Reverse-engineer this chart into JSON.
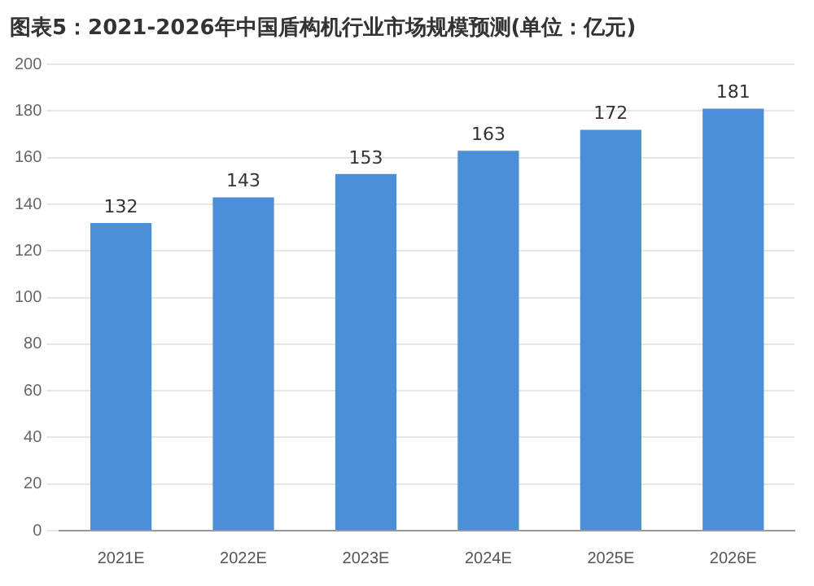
{
  "chart_data": {
    "type": "bar",
    "title": "图表5：2021-2026年中国盾构机行业市场规模预测(单位：亿元)",
    "categories": [
      "2021E",
      "2022E",
      "2023E",
      "2024E",
      "2025E",
      "2026E"
    ],
    "values": [
      132,
      143,
      153,
      163,
      172,
      181
    ],
    "color": "#4a8fd8",
    "ylim": [
      0,
      200
    ],
    "yticks": [
      0,
      20,
      40,
      60,
      80,
      100,
      120,
      140,
      160,
      180,
      200
    ],
    "grid": "y",
    "data_labels": true
  }
}
